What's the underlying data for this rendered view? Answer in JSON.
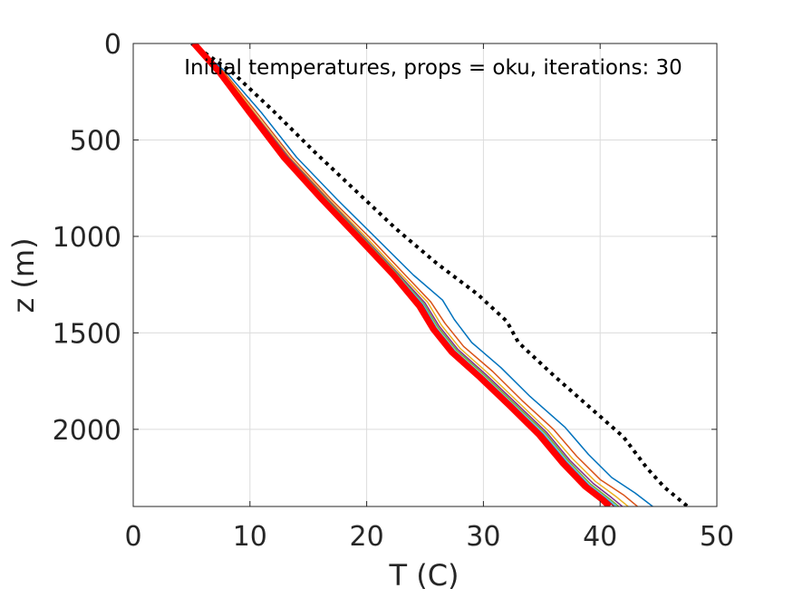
{
  "chart_data": {
    "type": "line",
    "title": "",
    "annotation": "Initial temperatures, props = oku, iterations: 30",
    "xlabel": "T (C)",
    "ylabel": "z (m)",
    "xlim": [
      0,
      50
    ],
    "ylim": [
      0,
      2400
    ],
    "y_reversed": true,
    "grid": true,
    "x_ticks": [
      0,
      10,
      20,
      30,
      40,
      50
    ],
    "y_ticks": [
      0,
      500,
      1000,
      1500,
      2000
    ],
    "series": [
      {
        "color": "#000000",
        "style": "dotted",
        "width": 4,
        "points": [
          [
            5.0,
            0
          ],
          [
            8.5,
            150
          ],
          [
            12,
            350
          ],
          [
            15.5,
            560
          ],
          [
            19,
            760
          ],
          [
            22.5,
            960
          ],
          [
            26,
            1140
          ],
          [
            29.5,
            1300
          ],
          [
            32,
            1440
          ],
          [
            33,
            1550
          ],
          [
            36,
            1720
          ],
          [
            39,
            1880
          ],
          [
            42,
            2040
          ],
          [
            44,
            2200
          ],
          [
            45.5,
            2300
          ],
          [
            47.5,
            2400
          ]
        ]
      },
      {
        "color": "#0072BD",
        "style": "solid",
        "width": 1.5,
        "points": [
          [
            5.0,
            0
          ],
          [
            8,
            150
          ],
          [
            11,
            360
          ],
          [
            14,
            590
          ],
          [
            17.5,
            810
          ],
          [
            21,
            1020
          ],
          [
            24,
            1200
          ],
          [
            26.5,
            1330
          ],
          [
            27.5,
            1430
          ],
          [
            29,
            1550
          ],
          [
            31.5,
            1680
          ],
          [
            34,
            1830
          ],
          [
            37,
            1990
          ],
          [
            39,
            2130
          ],
          [
            41,
            2250
          ],
          [
            43,
            2330
          ],
          [
            44.5,
            2400
          ]
        ]
      },
      {
        "color": "#D95319",
        "style": "solid",
        "width": 1.5,
        "points": [
          [
            5.0,
            0
          ],
          [
            7.8,
            150
          ],
          [
            10.6,
            360
          ],
          [
            13.6,
            590
          ],
          [
            17,
            810
          ],
          [
            20.5,
            1020
          ],
          [
            23.3,
            1200
          ],
          [
            25.5,
            1340
          ],
          [
            26.7,
            1450
          ],
          [
            28.3,
            1570
          ],
          [
            30.8,
            1700
          ],
          [
            33.3,
            1850
          ],
          [
            36,
            2000
          ],
          [
            38,
            2140
          ],
          [
            40,
            2260
          ],
          [
            42,
            2340
          ],
          [
            43.2,
            2400
          ]
        ]
      },
      {
        "color": "#EDB120",
        "style": "solid",
        "width": 1.5,
        "points": [
          [
            5.0,
            0
          ],
          [
            7.7,
            150
          ],
          [
            10.4,
            360
          ],
          [
            13.4,
            590
          ],
          [
            16.8,
            810
          ],
          [
            20.2,
            1020
          ],
          [
            23,
            1200
          ],
          [
            25.2,
            1340
          ],
          [
            26.4,
            1460
          ],
          [
            28,
            1580
          ],
          [
            30.4,
            1710
          ],
          [
            33,
            1860
          ],
          [
            35.6,
            2010
          ],
          [
            37.6,
            2150
          ],
          [
            39.6,
            2270
          ],
          [
            41.4,
            2350
          ],
          [
            42.4,
            2400
          ]
        ]
      },
      {
        "color": "#7E2F8E",
        "style": "solid",
        "width": 1.5,
        "points": [
          [
            5.0,
            0
          ],
          [
            7.6,
            150
          ],
          [
            10.3,
            360
          ],
          [
            13.3,
            590
          ],
          [
            16.7,
            810
          ],
          [
            20,
            1020
          ],
          [
            22.8,
            1200
          ],
          [
            25,
            1345
          ],
          [
            26.2,
            1465
          ],
          [
            27.8,
            1585
          ],
          [
            30.2,
            1715
          ],
          [
            32.8,
            1865
          ],
          [
            35.4,
            2015
          ],
          [
            37.4,
            2160
          ],
          [
            39.4,
            2280
          ],
          [
            41,
            2355
          ],
          [
            41.9,
            2400
          ]
        ]
      },
      {
        "color": "#77AC30",
        "style": "solid",
        "width": 1.5,
        "points": [
          [
            5.0,
            0
          ],
          [
            7.55,
            150
          ],
          [
            10.25,
            360
          ],
          [
            13.2,
            590
          ],
          [
            16.6,
            810
          ],
          [
            19.9,
            1020
          ],
          [
            22.7,
            1200
          ],
          [
            24.9,
            1350
          ],
          [
            26.1,
            1470
          ],
          [
            27.7,
            1590
          ],
          [
            30.1,
            1720
          ],
          [
            32.7,
            1870
          ],
          [
            35.3,
            2020
          ],
          [
            37.3,
            2165
          ],
          [
            39.2,
            2285
          ],
          [
            40.8,
            2360
          ],
          [
            41.6,
            2400
          ]
        ]
      },
      {
        "color": "#4DBEEE",
        "style": "solid",
        "width": 1.5,
        "points": [
          [
            5.0,
            0
          ],
          [
            7.5,
            150
          ],
          [
            10.2,
            360
          ],
          [
            13.15,
            590
          ],
          [
            16.5,
            810
          ],
          [
            19.8,
            1020
          ],
          [
            22.6,
            1200
          ],
          [
            24.8,
            1350
          ],
          [
            26,
            1475
          ],
          [
            27.6,
            1595
          ],
          [
            30,
            1725
          ],
          [
            32.6,
            1875
          ],
          [
            35.2,
            2025
          ],
          [
            37.2,
            2170
          ],
          [
            39.1,
            2290
          ],
          [
            40.6,
            2360
          ],
          [
            41.4,
            2400
          ]
        ]
      },
      {
        "color": "#A2142F",
        "style": "solid",
        "width": 1.5,
        "points": [
          [
            5.0,
            0
          ],
          [
            7.5,
            150
          ],
          [
            10.15,
            360
          ],
          [
            13.1,
            590
          ],
          [
            16.45,
            810
          ],
          [
            19.75,
            1020
          ],
          [
            22.55,
            1200
          ],
          [
            24.75,
            1355
          ],
          [
            25.95,
            1478
          ],
          [
            27.55,
            1598
          ],
          [
            29.95,
            1728
          ],
          [
            32.55,
            1878
          ],
          [
            35.1,
            2028
          ],
          [
            37.1,
            2172
          ],
          [
            39,
            2292
          ],
          [
            40.5,
            2362
          ],
          [
            41.2,
            2400
          ]
        ]
      },
      {
        "color": "#FF0000",
        "style": "solid",
        "width": 7,
        "points": [
          [
            5.2,
            0
          ],
          [
            7.4,
            150
          ],
          [
            10,
            360
          ],
          [
            12.9,
            590
          ],
          [
            16.2,
            810
          ],
          [
            19.5,
            1020
          ],
          [
            22.3,
            1200
          ],
          [
            24.5,
            1360
          ],
          [
            25.7,
            1480
          ],
          [
            27.3,
            1600
          ],
          [
            29.7,
            1730
          ],
          [
            32.3,
            1880
          ],
          [
            34.8,
            2030
          ],
          [
            36.8,
            2175
          ],
          [
            38.7,
            2295
          ],
          [
            40.2,
            2365
          ],
          [
            40.8,
            2400
          ]
        ]
      }
    ]
  }
}
